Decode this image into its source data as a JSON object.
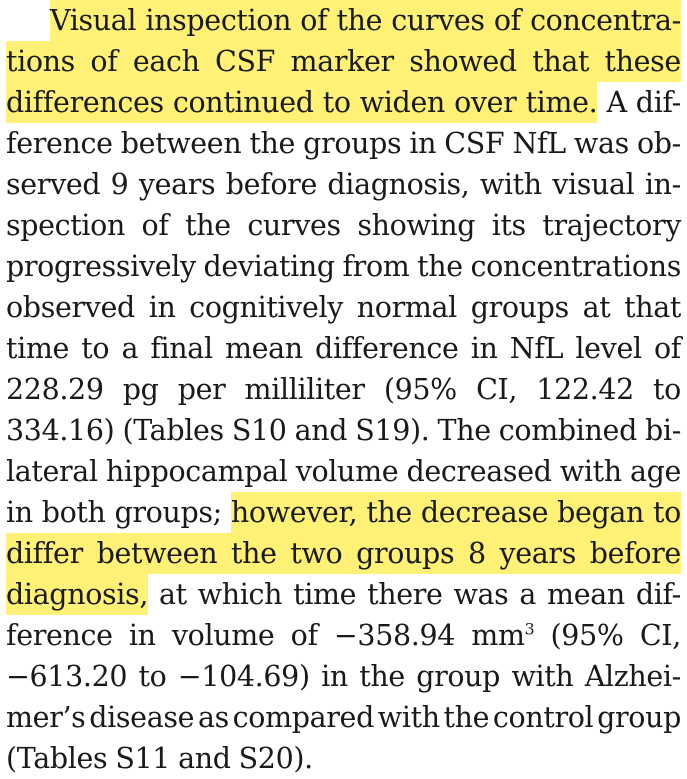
{
  "paragraph": {
    "lines": [
      {
        "text": "Visual inspection of the curves of concentra-",
        "highlight": "full"
      },
      {
        "text": "tions of each CSF marker showed that these",
        "highlight": "full"
      },
      {
        "pre": "",
        "hl": "differences continued to widen over time.",
        "post": "A dif-"
      },
      {
        "text": "ference between the groups in CSF NfL was ob-"
      },
      {
        "text": "served 9 years before diagnosis, with visual in-"
      },
      {
        "text": "spection of the curves showing its trajectory"
      },
      {
        "text": "progressively deviating from the concentrations"
      },
      {
        "text": "observed in cognitively normal groups at that"
      },
      {
        "text": "time to a final mean difference in NfL level of"
      },
      {
        "text": "228.29 pg per milliliter (95% CI, 122.42 to"
      },
      {
        "text": "334.16) (Tables S10 and S19). The combined bi-"
      },
      {
        "text": "lateral hippocampal volume decreased with age"
      },
      {
        "pre": "in both groups;",
        "hl": "however, the decrease began to",
        "post": ""
      },
      {
        "text": "differ between the two groups 8 years before",
        "highlight": "full"
      },
      {
        "pre": "",
        "hl": "diagnosis,",
        "post": "at which time there was a mean dif-"
      },
      {
        "text": "ference in volume of −358.94 mm",
        "sup": "3",
        "tail": "(95% CI,"
      },
      {
        "text": "−613.20 to −104.69) in the group with Alzhei-"
      },
      {
        "text": "mer’s disease as compared with the control group"
      },
      {
        "text": "(Tables S11 and S20).",
        "last": true
      }
    ]
  },
  "colors": {
    "highlight": "#fff176",
    "text": "#1a1a1a"
  }
}
